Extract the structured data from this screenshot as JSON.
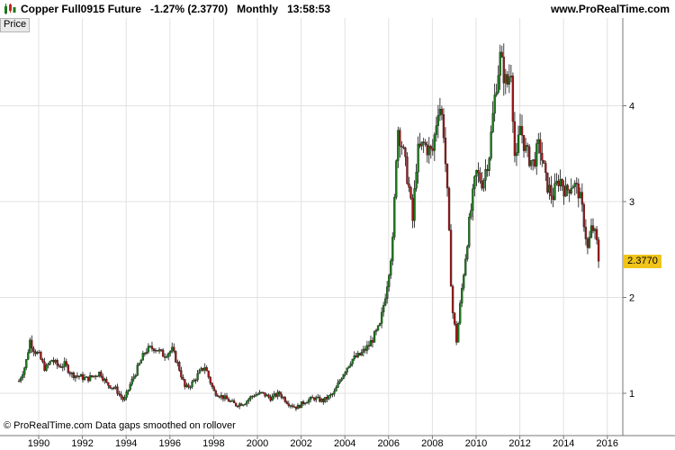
{
  "header": {
    "title": "Copper Full0915 Future   -1.27% (2.3770)   Monthly   13:58:53",
    "brand": "www.ProRealTime.com",
    "logo_icon": "candlestick-logo-icon"
  },
  "price_tab": "Price",
  "footer_credit": "© ProRealTime.com  Data gaps smoothed on rollover",
  "last_price_label": "2.3770",
  "colors": {
    "up": "#1a7a1a",
    "down": "#a01818",
    "grid": "#e2e2e2",
    "highlight": "#f0c419"
  },
  "chart_data": {
    "type": "candlestick",
    "title": "Copper Full0915 Future",
    "timeframe": "Monthly",
    "last_price": 2.377,
    "change_pct": -1.27,
    "x_tick_labels": [
      "1990",
      "1992",
      "1994",
      "1996",
      "1998",
      "2000",
      "2002",
      "2004",
      "2006",
      "2008",
      "2010",
      "2012",
      "2014",
      "2016"
    ],
    "y_tick_labels": [
      "1",
      "2",
      "3",
      "4"
    ],
    "ylim": [
      0.8,
      4.85
    ],
    "xlim": [
      1989.0,
      2016.5
    ],
    "grid": true,
    "price_path": [
      [
        1989.1,
        1.13
      ],
      [
        1989.4,
        1.3
      ],
      [
        1989.6,
        1.55
      ],
      [
        1989.8,
        1.45
      ],
      [
        1990.0,
        1.4
      ],
      [
        1990.3,
        1.25
      ],
      [
        1990.6,
        1.35
      ],
      [
        1990.9,
        1.28
      ],
      [
        1991.2,
        1.3
      ],
      [
        1991.5,
        1.2
      ],
      [
        1991.8,
        1.18
      ],
      [
        1992.2,
        1.15
      ],
      [
        1992.5,
        1.18
      ],
      [
        1992.8,
        1.22
      ],
      [
        1993.1,
        1.1
      ],
      [
        1993.5,
        1.05
      ],
      [
        1993.9,
        0.92
      ],
      [
        1994.2,
        1.1
      ],
      [
        1994.6,
        1.3
      ],
      [
        1994.9,
        1.45
      ],
      [
        1995.3,
        1.48
      ],
      [
        1995.7,
        1.4
      ],
      [
        1996.1,
        1.45
      ],
      [
        1996.4,
        1.28
      ],
      [
        1996.7,
        1.05
      ],
      [
        1997.0,
        1.1
      ],
      [
        1997.3,
        1.2
      ],
      [
        1997.6,
        1.28
      ],
      [
        1998.0,
        1.02
      ],
      [
        1998.5,
        0.95
      ],
      [
        1999.0,
        0.88
      ],
      [
        1999.4,
        0.9
      ],
      [
        1999.8,
        0.98
      ],
      [
        2000.2,
        1.0
      ],
      [
        2000.6,
        0.95
      ],
      [
        2001.0,
        1.0
      ],
      [
        2001.4,
        0.9
      ],
      [
        2001.8,
        0.85
      ],
      [
        2002.2,
        0.92
      ],
      [
        2002.6,
        0.95
      ],
      [
        2003.0,
        0.92
      ],
      [
        2003.5,
        1.0
      ],
      [
        2003.9,
        1.2
      ],
      [
        2004.3,
        1.35
      ],
      [
        2004.7,
        1.4
      ],
      [
        2005.1,
        1.5
      ],
      [
        2005.6,
        1.7
      ],
      [
        2005.9,
        2.1
      ],
      [
        2006.2,
        2.6
      ],
      [
        2006.4,
        3.8
      ],
      [
        2006.6,
        3.6
      ],
      [
        2006.9,
        3.2
      ],
      [
        2007.1,
        2.8
      ],
      [
        2007.3,
        3.5
      ],
      [
        2007.6,
        3.6
      ],
      [
        2008.0,
        3.5
      ],
      [
        2008.3,
        4.05
      ],
      [
        2008.5,
        3.8
      ],
      [
        2008.7,
        3.0
      ],
      [
        2008.9,
        1.9
      ],
      [
        2009.1,
        1.55
      ],
      [
        2009.4,
        2.2
      ],
      [
        2009.7,
        2.8
      ],
      [
        2010.0,
        3.3
      ],
      [
        2010.3,
        3.2
      ],
      [
        2010.6,
        3.5
      ],
      [
        2010.9,
        4.2
      ],
      [
        2011.1,
        4.5
      ],
      [
        2011.4,
        4.2
      ],
      [
        2011.6,
        4.4
      ],
      [
        2011.8,
        3.3
      ],
      [
        2012.0,
        3.8
      ],
      [
        2012.3,
        3.5
      ],
      [
        2012.6,
        3.4
      ],
      [
        2012.9,
        3.6
      ],
      [
        2013.2,
        3.2
      ],
      [
        2013.5,
        3.05
      ],
      [
        2013.8,
        3.25
      ],
      [
        2014.1,
        3.1
      ],
      [
        2014.4,
        3.2
      ],
      [
        2014.7,
        3.1
      ],
      [
        2014.9,
        2.85
      ],
      [
        2015.1,
        2.5
      ],
      [
        2015.3,
        2.75
      ],
      [
        2015.5,
        2.6
      ],
      [
        2015.6,
        2.377
      ]
    ]
  }
}
